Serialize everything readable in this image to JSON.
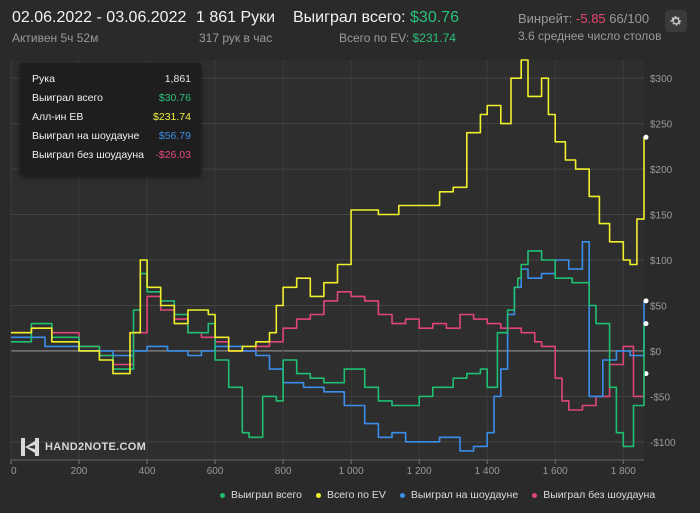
{
  "header": {
    "date_range": "02.06.2022 - 03.06.2022",
    "active": "Активен 5ч 52м",
    "hands": "1 861 Руки",
    "hands_rate": "317 рук в час",
    "won_label": "Выиграл всего:",
    "won_value": "$30.76",
    "ev_label": "Всего по EV:",
    "ev_value": "$231.74",
    "winrate_label": "Винрейт:",
    "winrate_value": "-5.85",
    "winrate_suffix": "66/100",
    "tables": "3.6 среднее число столов",
    "settings_icon": "gear-icon"
  },
  "tooltip": {
    "rows": [
      {
        "label": "Рука",
        "value": "1,861",
        "color": "#e6e6e6"
      },
      {
        "label": "Выиграл всего",
        "value": "$30.76",
        "color": "#2bc17a"
      },
      {
        "label": "Алл-ин ЕВ",
        "value": "$231.74",
        "color": "#f2ef3a"
      },
      {
        "label": "Выиграл на шоудауне",
        "value": "$56.79",
        "color": "#3a8fe8"
      },
      {
        "label": "Выиграл без шоудауна",
        "value": "-$26.03",
        "color": "#e84a7a"
      }
    ]
  },
  "logo": {
    "text": "HAND2NOTE.COM",
    "icon": "h2n-logo-icon"
  },
  "colors": {
    "won": "#1fbf72",
    "ev": "#f0ef2c",
    "showdown": "#3b8eea",
    "nonshowdown": "#e0457a",
    "positive": "#2bc17a",
    "negative": "#e8466f"
  },
  "chart_data": {
    "type": "line",
    "xlim": [
      0,
      1861
    ],
    "ylim": [
      -120,
      320
    ],
    "x_ticks": [
      0,
      200,
      400,
      600,
      800,
      1000,
      1200,
      1400,
      1600,
      1800
    ],
    "x_tick_labels": [
      "0",
      "200",
      "400",
      "600",
      "800",
      "1 000",
      "1 200",
      "1 400",
      "1 600",
      "1 800"
    ],
    "y_ticks": [
      300,
      250,
      200,
      150,
      100,
      50,
      0,
      -50,
      -100
    ],
    "y_tick_labels": [
      "$300",
      "$250",
      "$200",
      "$150",
      "$100",
      "$50",
      "$0",
      "-$50",
      "-$100"
    ],
    "grid": true,
    "legend_position": "bottom",
    "series": [
      {
        "name": "Выиграл всего",
        "color": "#1fbf72",
        "x": [
          0,
          60,
          120,
          200,
          260,
          300,
          360,
          380,
          400,
          440,
          480,
          520,
          580,
          600,
          640,
          680,
          700,
          740,
          780,
          800,
          840,
          880,
          920,
          980,
          1040,
          1080,
          1120,
          1200,
          1240,
          1300,
          1340,
          1380,
          1400,
          1430,
          1460,
          1480,
          1490,
          1500,
          1520,
          1560,
          1600,
          1650,
          1700,
          1720,
          1760,
          1780,
          1800,
          1830,
          1861
        ],
        "y": [
          10,
          30,
          15,
          5,
          -5,
          -20,
          45,
          85,
          65,
          55,
          40,
          20,
          30,
          -10,
          -40,
          -90,
          -95,
          -50,
          -55,
          -10,
          -25,
          -30,
          -35,
          -20,
          -40,
          -55,
          -60,
          -50,
          -40,
          -30,
          -25,
          -20,
          -40,
          20,
          45,
          70,
          80,
          95,
          110,
          100,
          80,
          75,
          50,
          30,
          -40,
          -90,
          -105,
          -60,
          30
        ]
      },
      {
        "name": "Всего по EV",
        "color": "#f0ef2c",
        "x": [
          0,
          60,
          120,
          200,
          260,
          300,
          350,
          380,
          400,
          440,
          480,
          520,
          580,
          600,
          640,
          680,
          720,
          760,
          780,
          800,
          840,
          880,
          920,
          960,
          1000,
          1080,
          1140,
          1200,
          1260,
          1300,
          1340,
          1380,
          1400,
          1440,
          1470,
          1500,
          1520,
          1560,
          1580,
          1600,
          1630,
          1660,
          1700,
          1730,
          1760,
          1800,
          1820,
          1840,
          1861
        ],
        "y": [
          20,
          25,
          10,
          0,
          -10,
          -25,
          20,
          100,
          70,
          50,
          30,
          45,
          40,
          15,
          0,
          5,
          10,
          20,
          50,
          70,
          80,
          60,
          75,
          95,
          155,
          150,
          160,
          160,
          175,
          180,
          240,
          260,
          270,
          250,
          300,
          320,
          280,
          300,
          260,
          230,
          210,
          200,
          170,
          140,
          120,
          100,
          95,
          145,
          235
        ]
      },
      {
        "name": "Выиграл на шоудауне",
        "color": "#3b8eea",
        "x": [
          0,
          100,
          200,
          300,
          360,
          400,
          460,
          520,
          560,
          600,
          680,
          720,
          760,
          800,
          860,
          920,
          980,
          1040,
          1080,
          1120,
          1160,
          1200,
          1260,
          1320,
          1360,
          1400,
          1420,
          1440,
          1460,
          1480,
          1500,
          1520,
          1560,
          1600,
          1640,
          1680,
          1700,
          1740,
          1780,
          1820,
          1861
        ],
        "y": [
          15,
          5,
          0,
          -5,
          0,
          5,
          0,
          -5,
          0,
          5,
          0,
          -5,
          -20,
          -35,
          -40,
          -45,
          -60,
          -80,
          -95,
          -90,
          -100,
          -100,
          -95,
          -110,
          -105,
          -90,
          -50,
          -20,
          40,
          70,
          90,
          80,
          85,
          100,
          90,
          120,
          -50,
          -10,
          0,
          -5,
          55
        ]
      },
      {
        "name": "Выиграл без шоудауна",
        "color": "#e0457a",
        "x": [
          0,
          60,
          120,
          200,
          260,
          300,
          360,
          400,
          440,
          480,
          520,
          560,
          600,
          640,
          680,
          720,
          760,
          800,
          840,
          880,
          920,
          960,
          1000,
          1040,
          1080,
          1120,
          1160,
          1200,
          1240,
          1280,
          1320,
          1360,
          1400,
          1440,
          1480,
          1500,
          1540,
          1560,
          1600,
          1620,
          1640,
          1680,
          1720,
          1760,
          1800,
          1830,
          1861
        ],
        "y": [
          20,
          25,
          20,
          5,
          -5,
          -15,
          20,
          60,
          45,
          35,
          20,
          15,
          10,
          0,
          0,
          5,
          10,
          25,
          35,
          40,
          55,
          65,
          60,
          55,
          40,
          30,
          35,
          25,
          30,
          25,
          40,
          35,
          30,
          25,
          25,
          20,
          10,
          5,
          -30,
          -55,
          -65,
          -60,
          -50,
          -15,
          5,
          -50,
          -25
        ]
      }
    ]
  }
}
